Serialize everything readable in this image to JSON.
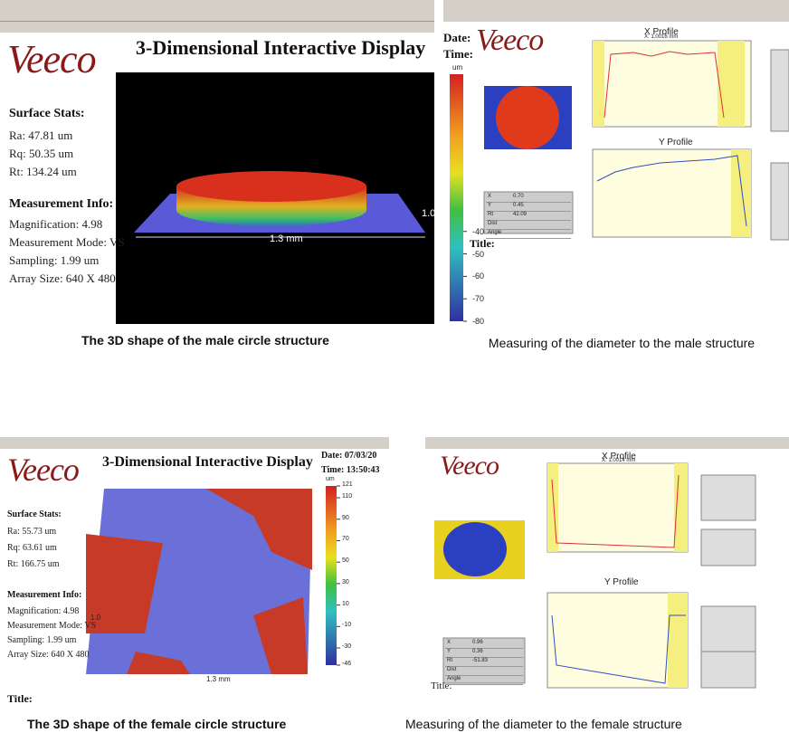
{
  "panels": [
    {
      "logo": "Veeco",
      "app_title": "3-Dimensional Interactive Display",
      "surface_stats_heading": "Surface Stats:",
      "stats": [
        "Ra: 47.81 um",
        "Rq: 50.35 um",
        "Rt: 134.24 um"
      ],
      "measurement_heading": "Measurement Info:",
      "info": [
        "Magnification: 4.98",
        "Measurement Mode: VS",
        "Sampling: 1.99 um",
        "Array Size: 640 X 480"
      ],
      "width_label": "1.3 mm",
      "depth_label": "1.0",
      "colorbar_unit": "um",
      "colorbar_lim": [
        -80,
        30
      ],
      "colorbar_ticks": [
        -40,
        -50,
        -60,
        -70,
        -80
      ],
      "caption": "The 3D shape of the male circle structure"
    },
    {
      "logo": "Veeco",
      "date_label": "Date:",
      "time_label": "Time:",
      "title_label": "Title:",
      "x_profile": "X Profile",
      "x_value": "X: 1.0016 mm",
      "y_profile": "Y Profile",
      "table": [
        [
          "X",
          "0.70"
        ],
        [
          "Y",
          "0.45"
        ],
        [
          "Rt",
          "42.09"
        ],
        [
          "Dist",
          ""
        ],
        [
          "Angle",
          ""
        ]
      ],
      "caption": "Measuring of the diameter to the male structure"
    },
    {
      "logo": "Veeco",
      "app_title": "3-Dimensional Interactive Display",
      "date": "Date: 07/03/20",
      "time": "Time: 13:50:43",
      "surface_stats_heading": "Surface Stats:",
      "stats": [
        "Ra: 55.73 um",
        "Rq: 63.61 um",
        "Rt: 166.75 um"
      ],
      "measurement_heading": "Measurement Info:",
      "info": [
        "Magnification: 4.98",
        "Measurement Mode: VS",
        "Sampling: 1.99 um",
        "Array Size: 640 X 480"
      ],
      "width_label": "1.3 mm",
      "depth_label": "1.0",
      "colorbar_unit": "um",
      "colorbar_lim": [
        -46,
        121
      ],
      "colorbar_ticks": [
        121,
        110,
        90,
        70,
        50,
        30,
        10,
        -10,
        -30,
        -46
      ],
      "title_label": "Title:",
      "caption": "The 3D shape of the female circle structure"
    },
    {
      "logo": "Veeco",
      "x_profile": "X Profile",
      "x_value": "X: 1.0014 mm",
      "y_profile": "Y Profile",
      "title_label": "Title:",
      "table": [
        [
          "X",
          "0.96"
        ],
        [
          "Y",
          "0.36"
        ],
        [
          "Rt",
          "-51.83"
        ],
        [
          "Dist",
          ""
        ],
        [
          "Angle",
          ""
        ]
      ],
      "caption": "Measuring of the diameter to the female structure"
    }
  ]
}
